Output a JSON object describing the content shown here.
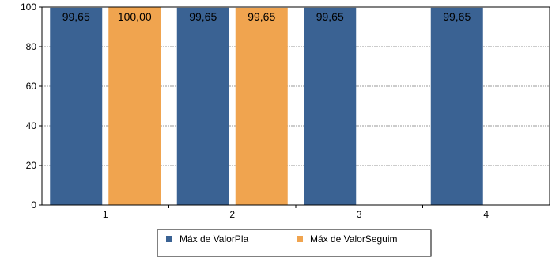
{
  "chart_data": {
    "type": "bar",
    "categories": [
      "1",
      "2",
      "3",
      "4"
    ],
    "series": [
      {
        "name": "Máx de ValorPla",
        "values": [
          99.65,
          99.65,
          99.65,
          99.65
        ],
        "labels": [
          "99,65",
          "99,65",
          "99,65",
          "99,65"
        ],
        "color": "#3A6293"
      },
      {
        "name": "Máx de ValorSeguim",
        "values": [
          100.0,
          99.65,
          null,
          null
        ],
        "labels": [
          "100,00",
          "99,65",
          null,
          null
        ],
        "color": "#F0A44F"
      }
    ],
    "y_ticks": [
      "0",
      "20",
      "40",
      "60",
      "80",
      "100"
    ],
    "ylim": [
      0,
      100
    ],
    "grid": true,
    "legend_position": "bottom"
  }
}
